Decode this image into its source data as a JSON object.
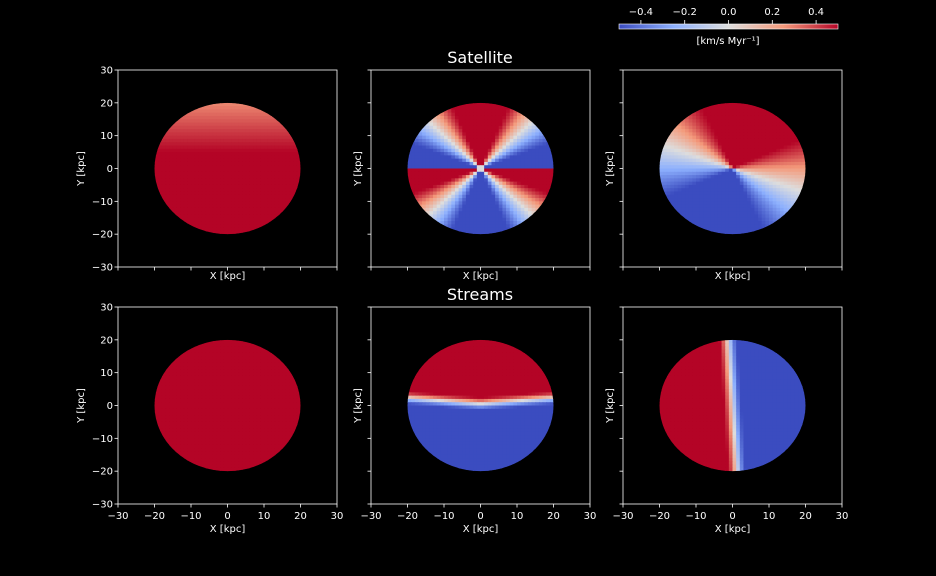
{
  "figure": {
    "row_titles": [
      "Satellite",
      "Streams"
    ],
    "xlabel": "X [kpc]",
    "ylabel": "Y [kpc]"
  },
  "colorbar": {
    "label": "[km/s  Myr⁻¹]",
    "ticks": [
      "−0.4",
      "−0.2",
      "0.0",
      "0.2",
      "0.4"
    ],
    "tick_values": [
      -0.4,
      -0.2,
      0.0,
      0.2,
      0.4
    ],
    "range": [
      -0.5,
      0.5
    ],
    "colormap": "coolwarm",
    "colors": {
      "low": "#3b4cc0",
      "mid": "#dddddd",
      "high": "#b40426"
    }
  },
  "chart_data": [
    {
      "type": "heatmap",
      "row": "Satellite",
      "column": 1,
      "xlabel": "X [kpc]",
      "ylabel": "Y [kpc]",
      "xlim": [
        -30,
        30
      ],
      "ylim": [
        -30,
        30
      ],
      "xticks": [
        -30,
        -20,
        -10,
        0,
        10,
        20,
        30
      ],
      "yticks": [
        -30,
        -20,
        -10,
        0,
        10,
        20,
        30
      ],
      "disk_radius_kpc": 20,
      "pattern": "upper-cap-gradient",
      "value_range": [
        0.25,
        0.5
      ]
    },
    {
      "type": "heatmap",
      "row": "Satellite",
      "column": 2,
      "xlabel": "X [kpc]",
      "ylabel": "Y [kpc]",
      "xlim": [
        -30,
        30
      ],
      "ylim": [
        -30,
        30
      ],
      "xticks": [
        -30,
        -20,
        -10,
        0,
        10,
        20,
        30
      ],
      "yticks": [
        -30,
        -20,
        -10,
        0,
        10,
        20,
        30
      ],
      "disk_radius_kpc": 20,
      "pattern": "quadrupole-vertical",
      "value_range": [
        -0.5,
        0.5
      ]
    },
    {
      "type": "heatmap",
      "row": "Satellite",
      "column": 3,
      "xlabel": "X [kpc]",
      "ylabel": "Y [kpc]",
      "xlim": [
        -30,
        30
      ],
      "ylim": [
        -30,
        30
      ],
      "xticks": [
        -30,
        -20,
        -10,
        0,
        10,
        20,
        30
      ],
      "yticks": [
        -30,
        -20,
        -10,
        0,
        10,
        20,
        30
      ],
      "disk_radius_kpc": 20,
      "pattern": "quadrupole-horizontal",
      "value_range": [
        -0.5,
        0.5
      ]
    },
    {
      "type": "heatmap",
      "row": "Streams",
      "column": 1,
      "xlabel": "X [kpc]",
      "ylabel": "Y [kpc]",
      "xlim": [
        -30,
        30
      ],
      "ylim": [
        -30,
        30
      ],
      "xticks": [
        -30,
        -20,
        -10,
        0,
        10,
        20,
        30
      ],
      "yticks": [
        -30,
        -20,
        -10,
        0,
        10,
        20,
        30
      ],
      "disk_radius_kpc": 20,
      "pattern": "uniform-high",
      "value_range": [
        0.5,
        0.5
      ]
    },
    {
      "type": "heatmap",
      "row": "Streams",
      "column": 2,
      "xlabel": "X [kpc]",
      "ylabel": "Y [kpc]",
      "xlim": [
        -30,
        30
      ],
      "ylim": [
        -30,
        30
      ],
      "xticks": [
        -30,
        -20,
        -10,
        0,
        10,
        20,
        30
      ],
      "yticks": [
        -30,
        -20,
        -10,
        0,
        10,
        20,
        30
      ],
      "disk_radius_kpc": 20,
      "pattern": "sign-change-across-y0",
      "value_range": [
        -0.5,
        0.5
      ]
    },
    {
      "type": "heatmap",
      "row": "Streams",
      "column": 3,
      "xlabel": "X [kpc]",
      "ylabel": "Y [kpc]",
      "xlim": [
        -30,
        30
      ],
      "ylim": [
        -30,
        30
      ],
      "xticks": [
        -30,
        -20,
        -10,
        0,
        10,
        20,
        30
      ],
      "yticks": [
        -30,
        -20,
        -10,
        0,
        10,
        20,
        30
      ],
      "disk_radius_kpc": 20,
      "pattern": "sign-change-across-x0",
      "value_range": [
        -0.5,
        0.5
      ]
    }
  ]
}
